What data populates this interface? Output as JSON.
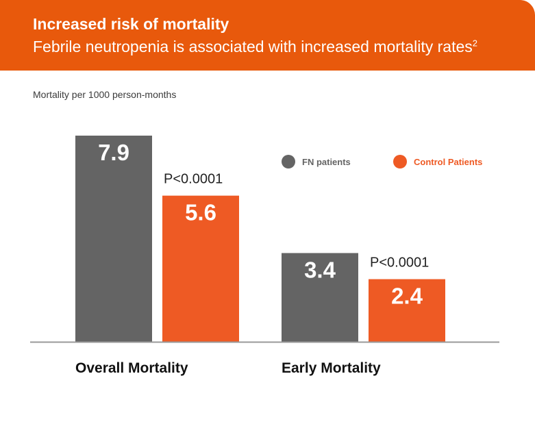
{
  "header": {
    "title": "Increased risk of mortality",
    "subtitle": "Febrile neutropenia is associated with increased mortality rates",
    "superscript": "2"
  },
  "colors": {
    "header_bg": "#e8590c",
    "fn": "#646464",
    "control": "#ee5a24",
    "axis": "#999999"
  },
  "legend": {
    "fn_label": "FN patients",
    "control_label": "Control Patients"
  },
  "chart_data": {
    "type": "bar",
    "ylabel": "Mortality per 1000 person-months",
    "ylim": [
      0,
      9
    ],
    "grid": false,
    "legend_position": "top-right",
    "categories": [
      "Overall Mortality",
      "Early Mortality"
    ],
    "series": [
      {
        "name": "FN patients",
        "values": [
          7.9,
          3.4
        ],
        "labels": [
          "7.9",
          "3.4"
        ]
      },
      {
        "name": "Control Patients",
        "values": [
          5.6,
          2.4
        ],
        "labels": [
          "5.6",
          "2.4"
        ]
      }
    ],
    "annotations": [
      "P<0.0001",
      "P<0.0001"
    ]
  }
}
